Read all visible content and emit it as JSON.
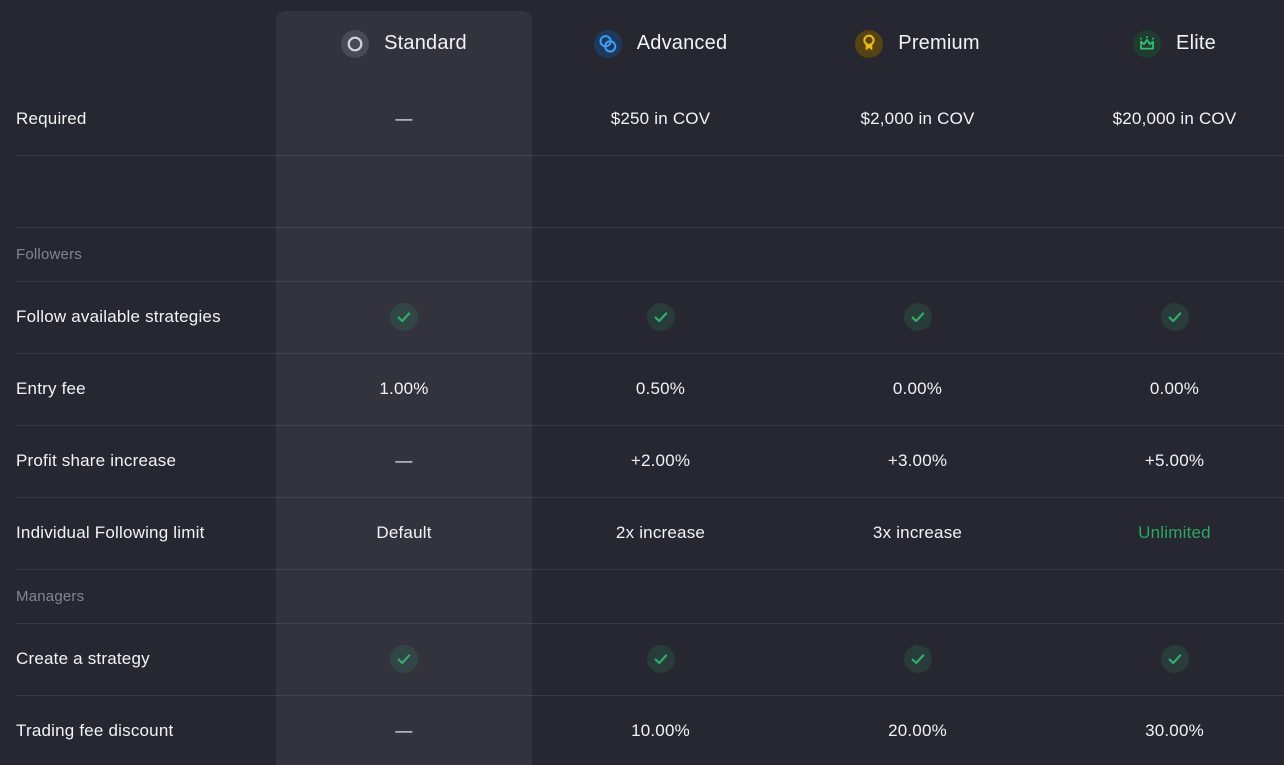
{
  "theme": {
    "colors": {
      "bg": "#272731",
      "panel": "#33333e",
      "divider": "rgba(228,228,240,0.10)",
      "text": "#f2f3f5",
      "muted": "#85858e",
      "green": "#2fae68",
      "green_text": "#2aa763",
      "gold": "#eab90f",
      "blue": "#3f9ef0",
      "standard_icon_bg": "#4a4a55",
      "advanced_icon_bg": "#1d3a5e",
      "premium_icon_bg": "#554312",
      "elite_icon_bg": "#1e3c2f",
      "check_bg": "rgba(47,174,104,0.16)"
    }
  },
  "header": {
    "tiers": [
      {
        "name": "Standard",
        "icon": "circle-outline-icon",
        "highlighted": true
      },
      {
        "name": "Advanced",
        "icon": "linked-rings-icon",
        "highlighted": false
      },
      {
        "name": "Premium",
        "icon": "medal-icon",
        "highlighted": false
      },
      {
        "name": "Elite",
        "icon": "crown-icon",
        "highlighted": false
      }
    ]
  },
  "rows": [
    {
      "type": "data",
      "label": "Required",
      "values": [
        "—",
        "$250 in COV",
        "$2,000 in COV",
        "$20,000 in COV"
      ]
    },
    {
      "type": "empty",
      "label": ""
    },
    {
      "type": "section",
      "label": "Followers"
    },
    {
      "type": "data",
      "label": "Follow available strategies",
      "values": [
        "check",
        "check",
        "check",
        "check"
      ]
    },
    {
      "type": "data",
      "label": "Entry fee",
      "values": [
        "1.00%",
        "0.50%",
        "0.00%",
        "0.00%"
      ]
    },
    {
      "type": "data",
      "label": "Profit share increase",
      "values": [
        "—",
        "+2.00%",
        "+3.00%",
        "+5.00%"
      ]
    },
    {
      "type": "data",
      "label": "Individual Following limit",
      "values": [
        "Default",
        "2x increase",
        "3x increase",
        {
          "text": "Unlimited",
          "accent": true
        }
      ]
    },
    {
      "type": "section",
      "label": "Managers"
    },
    {
      "type": "data",
      "label": "Create a strategy",
      "values": [
        "check",
        "check",
        "check",
        "check"
      ]
    },
    {
      "type": "data",
      "label": "Trading fee discount",
      "values": [
        "—",
        "10.00%",
        "20.00%",
        "30.00%"
      ]
    }
  ]
}
